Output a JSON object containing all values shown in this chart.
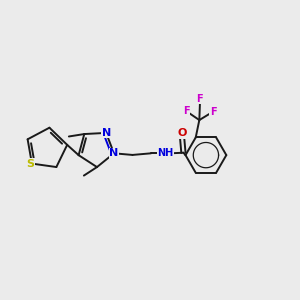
{
  "bg": "#ebebeb",
  "black": "#1a1a1a",
  "blue": "#0000dd",
  "yellow": "#bbbb00",
  "red": "#cc0000",
  "magenta": "#cc00cc",
  "lw": 1.4,
  "fs": 7.0,
  "xlim": [
    0,
    10
  ],
  "ylim": [
    2,
    8
  ]
}
